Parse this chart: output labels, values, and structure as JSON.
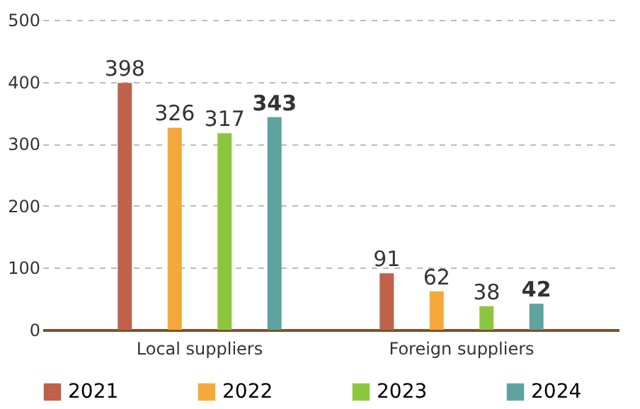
{
  "chart_data": {
    "type": "bar",
    "categories": [
      "Local suppliers",
      "Foreign suppliers"
    ],
    "series": [
      {
        "name": "2021",
        "color": "#c0614a",
        "values": [
          398,
          91
        ]
      },
      {
        "name": "2022",
        "color": "#f5a83a",
        "values": [
          326,
          62
        ]
      },
      {
        "name": "2023",
        "color": "#8cc63f",
        "values": [
          317,
          38
        ]
      },
      {
        "name": "2024",
        "color": "#5fa3a0",
        "values": [
          343,
          42
        ]
      }
    ],
    "ylim": [
      0,
      500
    ],
    "yticks": [
      0,
      100,
      200,
      300,
      400,
      500
    ],
    "grid": "y",
    "legend": "bottom",
    "data_labels": true
  }
}
